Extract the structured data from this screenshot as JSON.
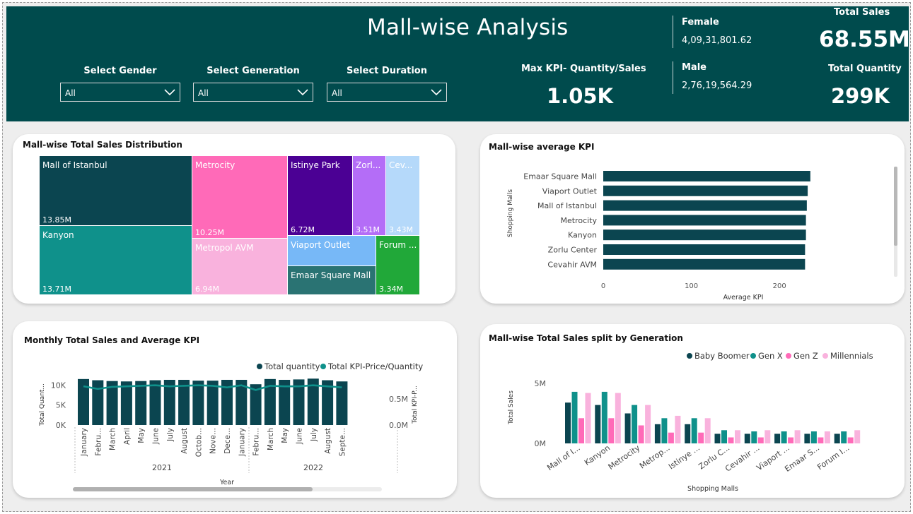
{
  "header": {
    "title": "Mall-wise Analysis",
    "filters": [
      {
        "label": "Select Gender",
        "value": "All"
      },
      {
        "label": "Select Generation",
        "value": "All"
      },
      {
        "label": "Select Duration",
        "value": "All"
      }
    ],
    "max_kpi": {
      "label": "Max KPI- Quantity/Sales",
      "value": "1.05K"
    },
    "female": {
      "label": "Female",
      "value": "4,09,31,801.62"
    },
    "male": {
      "label": "Male",
      "value": "2,76,19,564.29"
    },
    "total_sales": {
      "label": "Total Sales",
      "value": "68.55M"
    },
    "total_quantity": {
      "label": "Total Quantity",
      "value": "299K"
    }
  },
  "colors": {
    "header_bg": "#004b4d",
    "dark_teal": "#0b4550",
    "teal": "#0f918b",
    "pink": "#ff6ab8",
    "light_pink": "#f9b2dd",
    "purple": "#4b0094",
    "violet": "#b46df7",
    "light_blue": "#b5d9fa",
    "sky": "#77b8f7",
    "green": "#21a839"
  },
  "treemap": {
    "title": "Mall-wise Total Sales Distribution",
    "cells": [
      {
        "name": "Mall of Istanbul",
        "value": "13.85M",
        "color": "#0b4550"
      },
      {
        "name": "Kanyon",
        "value": "13.71M",
        "color": "#0f918b"
      },
      {
        "name": "Metrocity",
        "value": "10.25M",
        "color": "#ff6ab8"
      },
      {
        "name": "Metropol AVM",
        "value": "6.94M",
        "color": "#f9b2dd"
      },
      {
        "name": "Istinye Park",
        "value": "6.72M",
        "color": "#4b0094"
      },
      {
        "name": "Zorl...",
        "value": "3.51M",
        "color": "#b46df7"
      },
      {
        "name": "Cev...",
        "value": "3.43M",
        "color": "#b5d9fa"
      },
      {
        "name": "Viaport Outlet",
        "value": "",
        "color": "#77b8f7"
      },
      {
        "name": "Emaar Square Mall",
        "value": "",
        "color": "#2a7373"
      },
      {
        "name": "Forum ...",
        "value": "3.34M",
        "color": "#21a839"
      }
    ]
  },
  "avg_kpi": {
    "title": "Mall-wise average KPI",
    "ylabel": "Shopping Malls",
    "xlabel": "Average KPI",
    "xticks": [
      "0",
      "100",
      "200"
    ]
  },
  "monthly": {
    "title": "Monthly Total Sales and Average KPI",
    "legend": [
      "Total quantity",
      "Total KPI-Price/Quantity"
    ],
    "y_left_label": "Total Quant...",
    "y_right_label": "Total KPI-P...",
    "y_left_ticks": [
      "10K",
      "5K",
      "0K"
    ],
    "y_right_ticks": [
      "0.5M",
      "0.0M"
    ],
    "xlabel": "Year",
    "years": [
      "2021",
      "2022"
    ]
  },
  "generation": {
    "title": "Mall-wise Total Sales split by Generation",
    "legend": [
      "Baby Boomer",
      "Gen X",
      "Gen Z",
      "Millennials"
    ],
    "ylabel": "Total Sales",
    "xlabel": "Shopping Malls",
    "yticks": [
      "5M",
      "0M"
    ]
  },
  "chart_data": [
    {
      "type": "treemap",
      "title": "Mall-wise Total Sales Distribution",
      "categories": [
        "Mall of Istanbul",
        "Kanyon",
        "Metrocity",
        "Metropol AVM",
        "Istinye Park",
        "Zorlu Center",
        "Cevahir AVM",
        "Viaport Outlet",
        "Emaar Square Mall",
        "Forum Istanbul"
      ],
      "values": [
        13.85,
        13.71,
        10.25,
        6.94,
        6.72,
        3.51,
        3.43,
        3.4,
        3.4,
        3.34
      ]
    },
    {
      "type": "bar",
      "title": "Mall-wise average KPI",
      "categories": [
        "Emaar Square Mall",
        "Viaport Outlet",
        "Mall of Istanbul",
        "Metrocity",
        "Kanyon",
        "Zorlu Center",
        "Cevahir AVM"
      ],
      "values": [
        235,
        232,
        231,
        230,
        230,
        229,
        229
      ],
      "xlabel": "Average KPI",
      "ylabel": "Shopping Malls",
      "xlim": [
        0,
        260
      ]
    },
    {
      "type": "bar",
      "title": "Monthly Total Sales and Average KPI",
      "categories": [
        "January",
        "February",
        "March",
        "April",
        "May",
        "June",
        "July",
        "August",
        "October",
        "November",
        "December",
        "January",
        "February",
        "March",
        "May",
        "June",
        "July",
        "August",
        "September"
      ],
      "x_labels": [
        "January",
        "Febru...",
        "March",
        "April",
        "May",
        "June",
        "July",
        "August",
        "Octob...",
        "Nove...",
        "Dece...",
        "January",
        "Febru...",
        "March",
        "May",
        "June",
        "July",
        "August",
        "Septe..."
      ],
      "series": [
        {
          "name": "Total quantity",
          "values": [
            11.5,
            11.2,
            11.0,
            10.9,
            11.0,
            11.2,
            11.3,
            11.3,
            11.1,
            11.1,
            11.3,
            11.3,
            10.2,
            11.5,
            11.3,
            11.4,
            11.6,
            11.2,
            10.9
          ]
        },
        {
          "name": "Total KPI-Price/Quantity",
          "values": [
            0.74,
            0.69,
            0.73,
            0.74,
            0.75,
            0.76,
            0.74,
            0.75,
            0.76,
            0.75,
            0.72,
            0.76,
            0.67,
            0.75,
            0.74,
            0.74,
            0.76,
            0.74,
            0.72
          ]
        }
      ],
      "xlabel": "Year",
      "y_left_label": "Total Quant...",
      "y_right_label": "Total KPI-P...",
      "ylim_left": [
        0,
        12
      ],
      "ylim_right": [
        0,
        0.85
      ]
    },
    {
      "type": "bar",
      "title": "Mall-wise Total Sales split by Generation",
      "categories": [
        "Mall of I...",
        "Kanyon",
        "Metrocity",
        "Metrop...",
        "Istinye ...",
        "Zorlu C...",
        "Cevahir ...",
        "Viaport ...",
        "Emaar S...",
        "Forum I..."
      ],
      "series": [
        {
          "name": "Baby Boomer",
          "values": [
            3.4,
            3.2,
            2.5,
            1.6,
            1.6,
            0.8,
            0.8,
            0.8,
            0.8,
            0.8
          ]
        },
        {
          "name": "Gen X",
          "values": [
            4.3,
            4.3,
            3.2,
            2.1,
            2.1,
            1.1,
            1.0,
            1.0,
            1.0,
            1.0
          ]
        },
        {
          "name": "Gen Z",
          "values": [
            2.1,
            2.1,
            1.5,
            0.9,
            0.9,
            0.5,
            0.5,
            0.5,
            0.5,
            0.5
          ]
        },
        {
          "name": "Millennials",
          "values": [
            4.2,
            4.2,
            3.2,
            2.3,
            2.1,
            1.1,
            1.1,
            1.1,
            1.0,
            1.1
          ]
        }
      ],
      "xlabel": "Shopping Malls",
      "ylabel": "Total Sales",
      "ylim": [
        0,
        5.5
      ]
    }
  ]
}
